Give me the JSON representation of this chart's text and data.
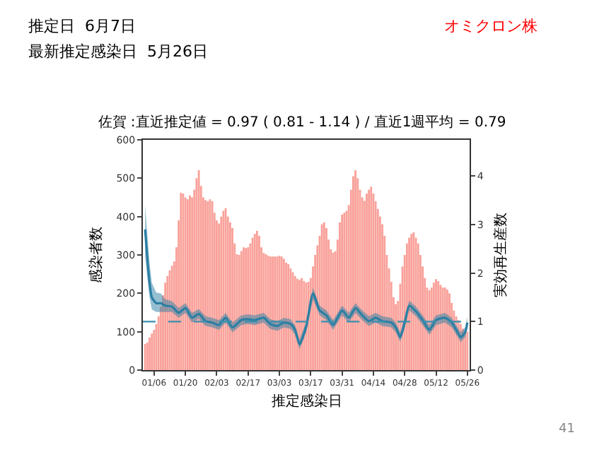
{
  "chart_data": {
    "type": "bar",
    "title": "佐賀 :直近推定値 = 0.97 ( 0.81 - 1.14 ) / 直近1週平均 = 0.79",
    "xlabel": "推定感染日",
    "ylabel": "感染者数",
    "y2label": "実効再生産数",
    "annotations": [
      "推定日  6月7日",
      "最新推定感染日  5月26日",
      "オミクロン株",
      "41"
    ],
    "xlim": [
      "--01-01",
      "--05-27"
    ],
    "xticks": [
      {
        "value": "--01-06",
        "label": "01/06"
      },
      {
        "value": "--01-20",
        "label": "01/20"
      },
      {
        "value": "--02-03",
        "label": "02/03"
      },
      {
        "value": "--02-17",
        "label": "02/17"
      },
      {
        "value": "--03-03",
        "label": "03/03"
      },
      {
        "value": "--03-17",
        "label": "03/17"
      },
      {
        "value": "--03-31",
        "label": "03/31"
      },
      {
        "value": "--04-14",
        "label": "04/14"
      },
      {
        "value": "--04-28",
        "label": "04/28"
      },
      {
        "value": "--05-12",
        "label": "05/12"
      },
      {
        "value": "--05-26",
        "label": "05/26"
      }
    ],
    "ylim": [
      0,
      600
    ],
    "yticks": [
      0,
      100,
      200,
      300,
      400,
      500,
      600
    ],
    "y2lim": [
      0,
      4.75
    ],
    "y2ticks": [
      0,
      1,
      2,
      3,
      4
    ],
    "ref_lines": [
      {
        "axis": "y2",
        "value": 1,
        "color": "#3a8fb0",
        "line_style": "dashed"
      }
    ],
    "series": [
      {
        "color": "#f9a19a",
        "x": [
          "--01-02",
          "--01-03",
          "--01-04",
          "--01-05",
          "--01-06",
          "--01-07",
          "--01-08",
          "--01-09",
          "--01-10",
          "--01-11",
          "--01-12",
          "--01-13",
          "--01-14",
          "--01-15",
          "--01-16",
          "--01-17",
          "--01-18",
          "--01-19",
          "--01-20",
          "--01-21",
          "--01-22",
          "--01-23",
          "--01-24",
          "--01-25",
          "--01-26",
          "--01-27",
          "--01-28",
          "--01-29",
          "--01-30",
          "--01-31",
          "--02-01",
          "--02-02",
          "--02-03",
          "--02-04",
          "--02-05",
          "--02-06",
          "--02-07",
          "--02-08",
          "--02-09",
          "--02-10",
          "--02-11",
          "--02-12",
          "--02-13",
          "--02-14",
          "--02-15",
          "--02-16",
          "--02-17",
          "--02-18",
          "--02-19",
          "--02-20",
          "--02-21",
          "--02-22",
          "--02-23",
          "--02-24",
          "--02-25",
          "--02-26",
          "--02-27",
          "--02-28",
          "--03-01",
          "--03-02",
          "--03-03",
          "--03-04",
          "--03-05",
          "--03-06",
          "--03-07",
          "--03-08",
          "--03-09",
          "--03-10",
          "--03-11",
          "--03-12",
          "--03-13",
          "--03-14",
          "--03-15",
          "--03-16",
          "--03-17",
          "--03-18",
          "--03-19",
          "--03-20",
          "--03-21",
          "--03-22",
          "--03-23",
          "--03-24",
          "--03-25",
          "--03-26",
          "--03-27",
          "--03-28",
          "--03-29",
          "--03-30",
          "--03-31",
          "--04-01",
          "--04-02",
          "--04-03",
          "--04-04",
          "--04-05",
          "--04-06",
          "--04-07",
          "--04-08",
          "--04-09",
          "--04-10",
          "--04-11",
          "--04-12",
          "--04-13",
          "--04-14",
          "--04-15",
          "--04-16",
          "--04-17",
          "--04-18",
          "--04-19",
          "--04-20",
          "--04-21",
          "--04-22",
          "--04-23",
          "--04-24",
          "--04-25",
          "--04-26",
          "--04-27",
          "--04-28",
          "--04-29",
          "--04-30",
          "--05-01",
          "--05-02",
          "--05-03",
          "--05-04",
          "--05-05",
          "--05-06",
          "--05-07",
          "--05-08",
          "--05-09",
          "--05-10",
          "--05-11",
          "--05-12",
          "--05-13",
          "--05-14",
          "--05-15",
          "--05-16",
          "--05-17",
          "--05-18",
          "--05-19",
          "--05-20",
          "--05-21",
          "--05-22",
          "--05-23",
          "--05-24",
          "--05-25",
          "--05-26"
        ],
        "values": [
          68,
          72,
          85,
          95,
          105,
          120,
          140,
          165,
          195,
          228,
          245,
          260,
          272,
          283,
          320,
          390,
          462,
          460,
          450,
          445,
          455,
          450,
          470,
          500,
          521,
          480,
          450,
          443,
          440,
          445,
          440,
          410,
          390,
          382,
          400,
          415,
          422,
          400,
          385,
          370,
          330,
          302,
          300,
          310,
          320,
          318,
          320,
          330,
          345,
          355,
          363,
          350,
          320,
          305,
          302,
          298,
          296,
          296,
          296,
          296,
          298,
          296,
          290,
          280,
          276,
          265,
          255,
          245,
          238,
          235,
          240,
          232,
          228,
          230,
          240,
          270,
          300,
          325,
          350,
          380,
          385,
          370,
          340,
          315,
          306,
          310,
          340,
          385,
          405,
          410,
          415,
          430,
          470,
          505,
          521,
          500,
          470,
          450,
          441,
          460,
          470,
          478,
          460,
          440,
          420,
          400,
          380,
          350,
          300,
          265,
          230,
          190,
          172,
          180,
          225,
          270,
          300,
          330,
          345,
          355,
          359,
          345,
          330,
          300,
          270,
          240,
          215,
          208,
          215,
          228,
          237,
          232,
          222,
          215,
          215,
          210,
          200,
          175,
          155,
          140,
          130,
          120,
          108,
          95,
          100
        ]
      },
      {
        "type": "line",
        "axis": "y2",
        "color": "#2b7fa3",
        "x": [
          "--01-02",
          "--01-03",
          "--01-04",
          "--01-05",
          "--01-07",
          "--01-09",
          "--01-11",
          "--01-14",
          "--01-17",
          "--01-20",
          "--01-23",
          "--01-26",
          "--01-29",
          "--02-01",
          "--02-04",
          "--02-07",
          "--02-10",
          "--02-14",
          "--02-17",
          "--02-20",
          "--02-24",
          "--02-27",
          "--03-02",
          "--03-05",
          "--03-08",
          "--03-10",
          "--03-12",
          "--03-15",
          "--03-18",
          "--03-21",
          "--03-24",
          "--03-27",
          "--03-31",
          "--04-03",
          "--04-06",
          "--04-09",
          "--04-12",
          "--04-15",
          "--04-18",
          "--04-22",
          "--04-24",
          "--04-26",
          "--04-28",
          "--04-30",
          "--05-03",
          "--05-06",
          "--05-09",
          "--05-12",
          "--05-16",
          "--05-19",
          "--05-21",
          "--05-23",
          "--05-25",
          "--05-26"
        ],
        "values": [
          2.9,
          2.3,
          1.8,
          1.5,
          1.38,
          1.38,
          1.33,
          1.31,
          1.18,
          1.28,
          1.08,
          1.16,
          1.01,
          0.98,
          0.93,
          1.08,
          0.88,
          1.03,
          1.05,
          1.03,
          1.08,
          0.95,
          0.91,
          0.98,
          0.95,
          0.83,
          0.53,
          0.9,
          1.58,
          1.23,
          1.13,
          0.93,
          1.23,
          1.08,
          1.28,
          1.13,
          1.01,
          1.08,
          1.01,
          0.98,
          0.88,
          0.68,
          0.98,
          1.33,
          1.21,
          1.03,
          0.83,
          1.03,
          1.08,
          0.98,
          0.83,
          0.68,
          0.78,
          0.98
        ],
        "lower": [
          2.35,
          1.9,
          1.5,
          1.25,
          1.2,
          1.2,
          1.2,
          1.2,
          1.08,
          1.18,
          0.98,
          1.06,
          0.91,
          0.88,
          0.83,
          0.98,
          0.78,
          0.93,
          0.95,
          0.93,
          0.98,
          0.85,
          0.81,
          0.88,
          0.85,
          0.73,
          0.43,
          0.8,
          1.46,
          1.13,
          1.03,
          0.83,
          1.13,
          0.98,
          1.18,
          1.03,
          0.91,
          0.98,
          0.91,
          0.88,
          0.78,
          0.58,
          0.88,
          1.23,
          1.11,
          0.93,
          0.73,
          0.93,
          0.98,
          0.88,
          0.73,
          0.58,
          0.68,
          0.86
        ],
        "upper": [
          3.4,
          2.8,
          2.2,
          1.8,
          1.6,
          1.58,
          1.46,
          1.42,
          1.28,
          1.38,
          1.18,
          1.26,
          1.11,
          1.08,
          1.03,
          1.18,
          0.98,
          1.13,
          1.15,
          1.13,
          1.18,
          1.05,
          1.01,
          1.08,
          1.05,
          0.93,
          0.63,
          1.0,
          1.7,
          1.33,
          1.23,
          1.03,
          1.33,
          1.18,
          1.38,
          1.23,
          1.11,
          1.18,
          1.11,
          1.08,
          0.98,
          0.78,
          1.08,
          1.43,
          1.31,
          1.13,
          0.93,
          1.13,
          1.18,
          1.08,
          0.93,
          0.78,
          0.88,
          1.1
        ]
      }
    ]
  }
}
